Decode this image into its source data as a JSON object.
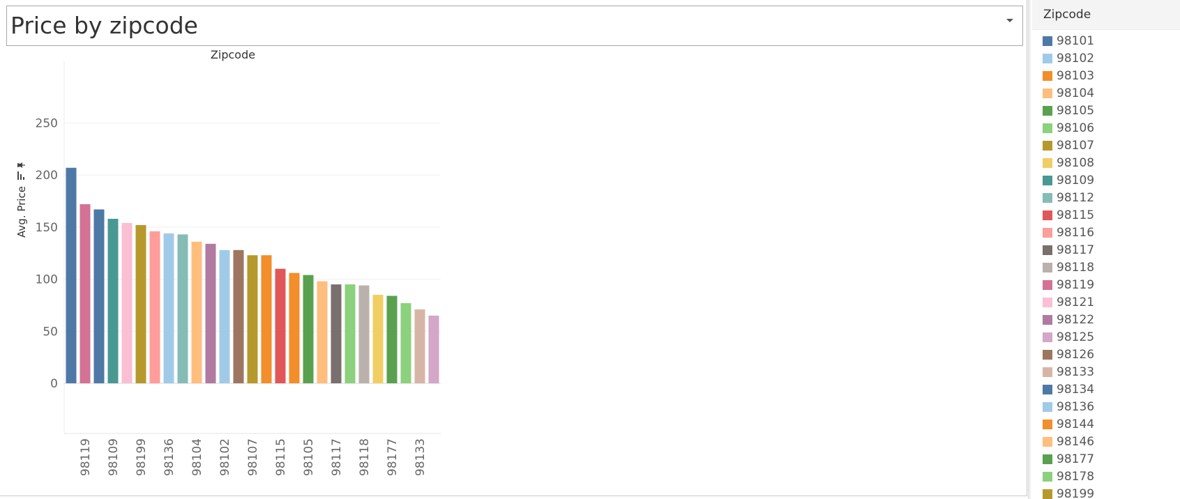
{
  "title": "Price by zipcode",
  "legend": {
    "title": "Zipcode",
    "items": [
      {
        "label": "98101",
        "color": "#4e79a7"
      },
      {
        "label": "98102",
        "color": "#a0cbe8"
      },
      {
        "label": "98103",
        "color": "#f28e2b"
      },
      {
        "label": "98104",
        "color": "#ffbe7d"
      },
      {
        "label": "98105",
        "color": "#59a14f"
      },
      {
        "label": "98106",
        "color": "#8cd17d"
      },
      {
        "label": "98107",
        "color": "#b6992d"
      },
      {
        "label": "98108",
        "color": "#f1ce63"
      },
      {
        "label": "98109",
        "color": "#499894"
      },
      {
        "label": "98112",
        "color": "#86bcb6"
      },
      {
        "label": "98115",
        "color": "#e15759"
      },
      {
        "label": "98116",
        "color": "#ff9d9a"
      },
      {
        "label": "98117",
        "color": "#79706e"
      },
      {
        "label": "98118",
        "color": "#bab0ac"
      },
      {
        "label": "98119",
        "color": "#d37295"
      },
      {
        "label": "98121",
        "color": "#fabfd2"
      },
      {
        "label": "98122",
        "color": "#b07aa1"
      },
      {
        "label": "98125",
        "color": "#d4a6c8"
      },
      {
        "label": "98126",
        "color": "#9d7660"
      },
      {
        "label": "98133",
        "color": "#d7b5a6"
      },
      {
        "label": "98134",
        "color": "#4e79a7"
      },
      {
        "label": "98136",
        "color": "#a0cbe8"
      },
      {
        "label": "98144",
        "color": "#f28e2b"
      },
      {
        "label": "98146",
        "color": "#ffbe7d"
      },
      {
        "label": "98177",
        "color": "#59a14f"
      },
      {
        "label": "98178",
        "color": "#8cd17d"
      },
      {
        "label": "98199",
        "color": "#b6992d"
      }
    ]
  },
  "chart_data": {
    "type": "bar",
    "title": "Zipcode",
    "xlabel": "",
    "ylabel": "Avg. Price",
    "ylim": [
      -45,
      280
    ],
    "yticks": [
      0,
      50,
      100,
      150,
      200,
      250
    ],
    "grid": true,
    "legend_position": "right",
    "categories": [
      "98101",
      "98119",
      "98134",
      "98109",
      "98121",
      "98199",
      "98116",
      "98136",
      "98112",
      "98104",
      "98122",
      "98102",
      "98126",
      "98107",
      "98103",
      "98115",
      "98144",
      "98105",
      "98146",
      "98117",
      "98178",
      "98118",
      "98108",
      "98177",
      "98106",
      "98133",
      "98125"
    ],
    "values": [
      207,
      172,
      167,
      158,
      154,
      152,
      146,
      144,
      143,
      136,
      134,
      128,
      128,
      123,
      123,
      110,
      106,
      104,
      98,
      95,
      95,
      94,
      85,
      84,
      77,
      71,
      65
    ],
    "colors": [
      "#4e79a7",
      "#d37295",
      "#4e79a7",
      "#499894",
      "#fabfd2",
      "#b6992d",
      "#ff9d9a",
      "#a0cbe8",
      "#86bcb6",
      "#ffbe7d",
      "#b07aa1",
      "#a0cbe8",
      "#9d7660",
      "#b6992d",
      "#f28e2b",
      "#e15759",
      "#f28e2b",
      "#59a14f",
      "#ffbe7d",
      "#79706e",
      "#8cd17d",
      "#bab0ac",
      "#f1ce63",
      "#59a14f",
      "#8cd17d",
      "#d7b5a6",
      "#d4a6c8"
    ],
    "shown_tick_labels": [
      "98119",
      "98109",
      "98199",
      "98136",
      "98104",
      "98102",
      "98107",
      "98115",
      "98105",
      "98117",
      "98118",
      "98177",
      "98133"
    ]
  }
}
